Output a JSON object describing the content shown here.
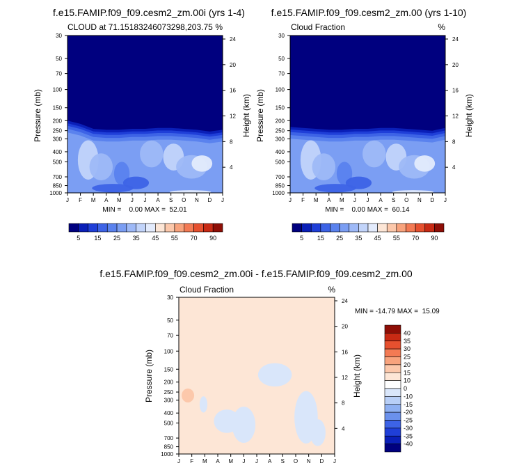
{
  "chart_data": [
    {
      "type": "contour",
      "title": "f.e15.FAMIP.f09_f09.cesm2_zm.00i (yrs 1-4)",
      "subtitle_left": "CLOUD at 71.15183246073298,203.75",
      "subtitle_right": "%",
      "ylabel": "Pressure (mb)",
      "ylabel_right": "Height (km)",
      "x_ticks": [
        "J",
        "F",
        "M",
        "A",
        "M",
        "J",
        "J",
        "A",
        "S",
        "O",
        "N",
        "D",
        "J"
      ],
      "y_ticks": [
        30,
        50,
        70,
        100,
        150,
        200,
        250,
        300,
        400,
        500,
        700,
        850,
        1000
      ],
      "height_ticks": [
        4,
        8,
        12,
        16,
        20,
        24
      ],
      "ylim": [
        1000,
        30
      ],
      "y_scale": "log",
      "stats": "MIN =    0.00 MAX =  52.01",
      "stat_min": 0.0,
      "stat_max": 52.01,
      "cloud_top_mb": [
        200,
        215,
        240,
        245,
        245,
        240,
        240,
        235,
        235,
        240,
        245,
        255,
        245
      ],
      "core_value": 40
    },
    {
      "type": "contour",
      "title": "f.e15.FAMIP.f09_f09.cesm2_zm.00 (yrs 1-10)",
      "subtitle_left": "Cloud Fraction",
      "subtitle_right": "%",
      "ylabel": "Pressure (mb)",
      "ylabel_right": "Height (km)",
      "x_ticks": [
        "J",
        "F",
        "M",
        "A",
        "M",
        "J",
        "J",
        "A",
        "S",
        "O",
        "N",
        "D",
        "J"
      ],
      "y_ticks": [
        30,
        50,
        70,
        100,
        150,
        200,
        250,
        300,
        400,
        500,
        700,
        850,
        1000
      ],
      "height_ticks": [
        4,
        8,
        12,
        16,
        20,
        24
      ],
      "ylim": [
        1000,
        30
      ],
      "y_scale": "log",
      "stats": "MIN =    0.00 MAX =  60.14",
      "stat_min": 0.0,
      "stat_max": 60.14,
      "cloud_top_mb": [
        230,
        235,
        240,
        245,
        245,
        240,
        240,
        235,
        235,
        240,
        245,
        250,
        235
      ],
      "core_value": 40
    },
    {
      "type": "contour",
      "title": "f.e15.FAMIP.f09_f09.cesm2_zm.00i - f.e15.FAMIP.f09_f09.cesm2_zm.00",
      "subtitle_left": "Cloud Fraction",
      "subtitle_right": "%",
      "ylabel": "Pressure (mb)",
      "ylabel_right": "Height (km)",
      "x_ticks": [
        "J",
        "F",
        "M",
        "A",
        "M",
        "J",
        "J",
        "A",
        "S",
        "O",
        "N",
        "D",
        "J"
      ],
      "y_ticks": [
        30,
        50,
        70,
        100,
        150,
        200,
        250,
        300,
        400,
        500,
        700,
        850,
        1000
      ],
      "height_ticks": [
        4,
        8,
        12,
        16,
        20,
        24
      ],
      "ylim": [
        1000,
        30
      ],
      "y_scale": "log",
      "stats": "MIN = -14.79 MAX =  15.09",
      "stat_min": -14.79,
      "stat_max": 15.09,
      "background_value": 5
    }
  ],
  "colorbar_abs": {
    "labels": [
      "5",
      "15",
      "25",
      "35",
      "45",
      "55",
      "70",
      "90"
    ],
    "colors": [
      "#00007f",
      "#0a1fb8",
      "#1f3fd8",
      "#3d63e6",
      "#5a82ee",
      "#7b9ef3",
      "#9eb9f7",
      "#c2d4fa",
      "#e3ebfc",
      "#fde6d6",
      "#fcc8ab",
      "#f8a37d",
      "#f37a54",
      "#e6502f",
      "#c82a14",
      "#8e0e06"
    ]
  },
  "colorbar_diff": {
    "labels": [
      "40",
      "35",
      "30",
      "25",
      "20",
      "15",
      "10",
      "0",
      "-10",
      "-15",
      "-20",
      "-25",
      "-30",
      "-35",
      "-40"
    ],
    "colors": [
      "#8e0e06",
      "#c82a14",
      "#e6502f",
      "#f37a54",
      "#f8a37d",
      "#fcc8ab",
      "#fde6d6",
      "#ffffff",
      "#d9e6fa",
      "#b8cff7",
      "#8eb0f2",
      "#6b91ec",
      "#3d63e6",
      "#1f3fd8",
      "#0a1fb8",
      "#00007f"
    ]
  }
}
